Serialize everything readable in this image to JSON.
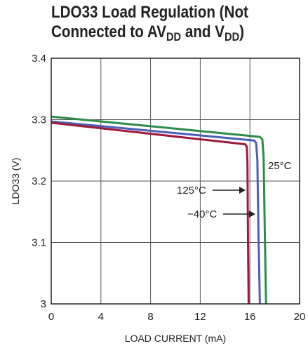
{
  "title": {
    "line1": "LDO33 Load Regulation (Not",
    "line2_prefix": "Connected to AV",
    "sub1": "DD",
    "mid": " and V",
    "sub2": "DD",
    "suffix": ")"
  },
  "chart_data": {
    "type": "line",
    "xlabel": "LOAD CURRENT (mA)",
    "ylabel": "LDO33 (V)",
    "xlim": [
      0,
      20
    ],
    "ylim": [
      3.0,
      3.4
    ],
    "xticks": [
      0,
      4,
      8,
      12,
      16,
      20
    ],
    "yticks": [
      3.0,
      3.1,
      3.2,
      3.3,
      3.4
    ],
    "xtick_labels": [
      "0",
      "4",
      "8",
      "12",
      "16",
      "20"
    ],
    "ytick_labels": [
      "3",
      "3.1",
      "3.2",
      "3.3",
      "3.4"
    ],
    "grid": true,
    "series": [
      {
        "name": "25°C",
        "color": "#2e8b4a",
        "x": [
          0,
          16.8,
          17.0,
          17.1,
          17.2,
          17.3
        ],
        "y": [
          3.305,
          3.272,
          3.268,
          3.24,
          3.12,
          3.0
        ]
      },
      {
        "name": "−40°C",
        "color": "#4a5fb8",
        "x": [
          0,
          16.35,
          16.5,
          16.6,
          16.7,
          16.8
        ],
        "y": [
          3.297,
          3.266,
          3.262,
          3.235,
          3.1,
          3.0
        ]
      },
      {
        "name": "125°C",
        "color": "#9e1a3c",
        "x": [
          0,
          15.6,
          15.75,
          15.8,
          15.85,
          15.9
        ],
        "y": [
          3.295,
          3.26,
          3.256,
          3.23,
          3.1,
          3.0
        ]
      }
    ],
    "annotations": [
      {
        "text": "25°C",
        "series": "25°C"
      },
      {
        "text": "125°C",
        "series": "125°C"
      },
      {
        "text": "−40°C",
        "series": "−40°C"
      }
    ]
  }
}
